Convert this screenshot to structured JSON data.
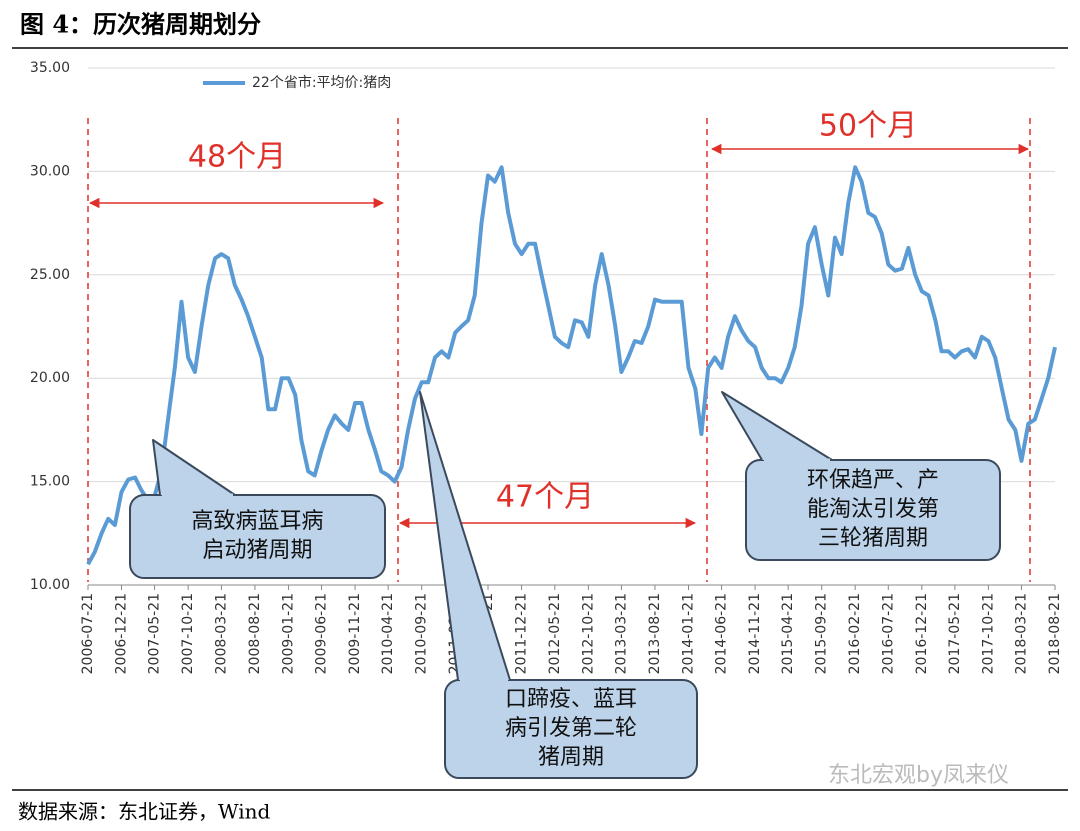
{
  "header": {
    "title": "图 4：历次猪周期划分"
  },
  "chart_data": {
    "type": "line",
    "series": [
      {
        "name": "22个省市:平均价:猪肉",
        "color": "#5b9bd5",
        "values": [
          11.0,
          11.6,
          12.5,
          13.2,
          12.9,
          14.5,
          15.1,
          15.2,
          14.6,
          14.1,
          14.3,
          15.5,
          18.0,
          20.5,
          23.7,
          21.0,
          20.3,
          22.5,
          24.5,
          25.8,
          26.0,
          25.8,
          24.5,
          23.8,
          23.0,
          22.0,
          21.0,
          18.5,
          18.5,
          20.0,
          20.0,
          19.2,
          17.0,
          15.5,
          15.3,
          16.5,
          17.5,
          18.2,
          17.8,
          17.5,
          18.8,
          18.8,
          17.5,
          16.5,
          15.5,
          15.3,
          15.0,
          15.7,
          17.5,
          19.0,
          19.8,
          19.8,
          21.0,
          21.3,
          21.0,
          22.2,
          22.5,
          22.8,
          24.0,
          27.5,
          29.8,
          29.5,
          30.2,
          28.0,
          26.5,
          26.0,
          26.5,
          26.5,
          25.0,
          23.5,
          22.0,
          21.7,
          21.5,
          22.8,
          22.7,
          22.0,
          24.5,
          26.0,
          24.5,
          22.5,
          20.3,
          21.0,
          21.8,
          21.7,
          22.5,
          23.8,
          23.7,
          23.7,
          23.7,
          23.7,
          20.5,
          19.5,
          17.3,
          20.5,
          21.0,
          20.5,
          22.0,
          23.0,
          22.3,
          21.8,
          21.5,
          20.5,
          20.0,
          20.0,
          19.8,
          20.5,
          21.5,
          23.5,
          26.5,
          27.3,
          25.5,
          24.0,
          26.8,
          26.0,
          28.5,
          30.2,
          29.5,
          28.0,
          27.8,
          27.0,
          25.5,
          25.2,
          25.3,
          26.3,
          25.0,
          24.2,
          24.0,
          22.8,
          21.3,
          21.3,
          21.0,
          21.3,
          21.4,
          21.0,
          22.0,
          21.8,
          21.0,
          19.5,
          18.0,
          17.5,
          16.0,
          17.8,
          18.0,
          19.0,
          20.0,
          21.5
        ]
      }
    ],
    "x": [
      "2006-07-21",
      "2006-08-21",
      "2006-09-21",
      "2006-10-21",
      "2006-11-21",
      "2006-12-21",
      "2007-01-21",
      "2007-02-21",
      "2007-03-21",
      "2007-04-21",
      "2007-05-21",
      "2007-06-21",
      "2007-07-21",
      "2007-08-21",
      "2007-09-21",
      "2007-10-21",
      "2007-11-21",
      "2007-12-21",
      "2008-01-21",
      "2008-02-21",
      "2008-03-21",
      "2008-04-21",
      "2008-05-21",
      "2008-06-21",
      "2008-07-21",
      "2008-08-21",
      "2008-09-21",
      "2008-10-21",
      "2008-11-21",
      "2008-12-21",
      "2009-01-21",
      "2009-02-21",
      "2009-03-21",
      "2009-04-21",
      "2009-05-21",
      "2009-06-21",
      "2009-07-21",
      "2009-08-21",
      "2009-09-21",
      "2009-10-21",
      "2009-11-21",
      "2009-12-21",
      "2010-01-21",
      "2010-02-21",
      "2010-03-21",
      "2010-04-21",
      "2010-05-21",
      "2010-06-21",
      "2010-07-21",
      "2010-08-21",
      "2010-09-21",
      "2010-10-21",
      "2010-11-21",
      "2010-12-21",
      "2011-01-21",
      "2011-02-21",
      "2011-03-21",
      "2011-04-21",
      "2011-05-21",
      "2011-06-21",
      "2011-07-21",
      "2011-08-21",
      "2011-09-21",
      "2011-10-21",
      "2011-11-21",
      "2011-12-21",
      "2012-01-21",
      "2012-02-21",
      "2012-03-21",
      "2012-04-21",
      "2012-05-21",
      "2012-06-21",
      "2012-07-21",
      "2012-08-21",
      "2012-09-21",
      "2012-10-21",
      "2012-11-21",
      "2012-12-21",
      "2013-01-21",
      "2013-02-21",
      "2013-03-21",
      "2013-04-21",
      "2013-05-21",
      "2013-06-21",
      "2013-07-21",
      "2013-08-21",
      "2013-09-21",
      "2013-10-21",
      "2013-11-21",
      "2013-12-21",
      "2014-01-21",
      "2014-02-21",
      "2014-03-21",
      "2014-04-21",
      "2014-05-21",
      "2014-06-21",
      "2014-07-21",
      "2014-08-21",
      "2014-09-21",
      "2014-10-21",
      "2014-11-21",
      "2014-12-21",
      "2015-01-21",
      "2015-02-21",
      "2015-03-21",
      "2015-04-21",
      "2015-05-21",
      "2015-06-21",
      "2015-07-21",
      "2015-08-21",
      "2015-09-21",
      "2015-10-21",
      "2015-11-21",
      "2015-12-21",
      "2016-01-21",
      "2016-02-21",
      "2016-03-21",
      "2016-04-21",
      "2016-05-21",
      "2016-06-21",
      "2016-07-21",
      "2016-08-21",
      "2016-09-21",
      "2016-10-21",
      "2016-11-21",
      "2016-12-21",
      "2017-01-21",
      "2017-02-21",
      "2017-03-21",
      "2017-04-21",
      "2017-05-21",
      "2017-06-21",
      "2017-07-21",
      "2017-08-21",
      "2017-09-21",
      "2017-10-21",
      "2017-11-21",
      "2017-12-21",
      "2018-01-21",
      "2018-02-21",
      "2018-03-21",
      "2018-04-21",
      "2018-05-21",
      "2018-06-21",
      "2018-07-21",
      "2018-08-21"
    ],
    "xlim": [
      "2006-07-21",
      "2018-08-21"
    ],
    "xticks": [
      "2006-07-21",
      "2006-12-21",
      "2007-05-21",
      "2007-10-21",
      "2008-03-21",
      "2008-08-21",
      "2009-01-21",
      "2009-06-21",
      "2009-11-21",
      "2010-04-21",
      "2010-09-21",
      "2011-02-21",
      "2011-07-21",
      "2011-12-21",
      "2012-05-21",
      "2012-10-21",
      "2013-03-21",
      "2013-08-21",
      "2014-01-21",
      "2014-06-21",
      "2014-11-21",
      "2015-04-21",
      "2015-09-21",
      "2016-02-21",
      "2016-07-21",
      "2016-12-21",
      "2017-05-21",
      "2017-10-21",
      "2018-03-21",
      "2018-08-21"
    ],
    "ylim": [
      10,
      35
    ],
    "yticks": [
      {
        "value": 10,
        "label": "10.00"
      },
      {
        "value": 15,
        "label": "15.00"
      },
      {
        "value": 20,
        "label": "20.00"
      },
      {
        "value": 25,
        "label": "25.00"
      },
      {
        "value": 30,
        "label": "30.00"
      },
      {
        "value": 35,
        "label": "35.00"
      }
    ],
    "grid": true,
    "annotations": [
      {
        "text": "48个月"
      },
      {
        "text": "47个月"
      },
      {
        "text": "50个月"
      },
      {
        "lines": [
          "高致病蓝耳病",
          "启动猪周期"
        ]
      },
      {
        "lines": [
          "口蹄疫、蓝耳",
          "病引发第二轮",
          "猪周期"
        ]
      },
      {
        "lines": [
          "环保趋严、产",
          "能淘汰引发第",
          "三轮猪周期"
        ]
      }
    ]
  },
  "footer": {
    "source": "数据来源：东北证券，Wind",
    "watermark": "东北宏观by凤来仪"
  }
}
